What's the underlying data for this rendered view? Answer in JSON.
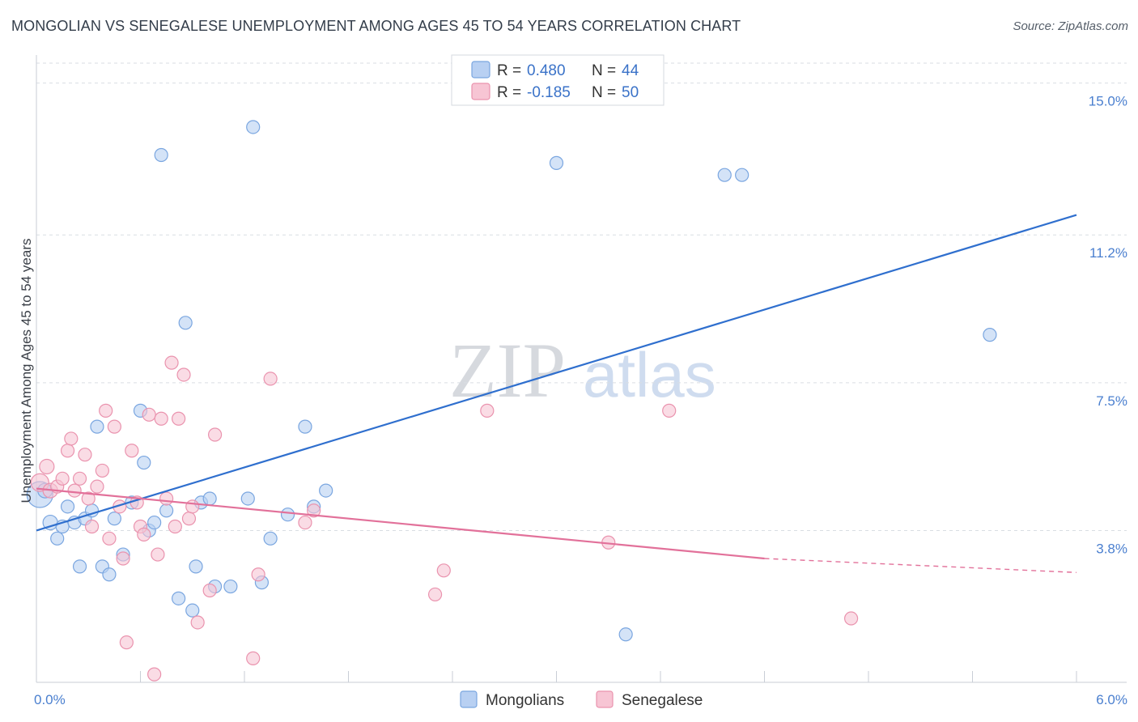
{
  "title": "MONGOLIAN VS SENEGALESE UNEMPLOYMENT AMONG AGES 45 TO 54 YEARS CORRELATION CHART",
  "source": "Source: ZipAtlas.com",
  "watermark": {
    "zip": "ZIP",
    "atlas": "atlas"
  },
  "colors": {
    "mongolians_fill": "#b8d0f2",
    "mongolians_stroke": "#7aa6e0",
    "mongolians_line": "#2f6fce",
    "senegalese_fill": "#f7c5d4",
    "senegalese_stroke": "#ea93ae",
    "senegalese_line": "#e2719a",
    "grid": "#d9dde3",
    "axis_text": "#4a7fcf"
  },
  "legend": {
    "rows": [
      {
        "r_label": "R =",
        "r_value": "0.480",
        "n_label": "N =",
        "n_value": "44"
      },
      {
        "r_label": "R =",
        "r_value": "-0.185",
        "n_label": "N =",
        "n_value": "50"
      }
    ]
  },
  "chart_data": {
    "type": "scatter",
    "title": "MONGOLIAN VS SENEGALESE UNEMPLOYMENT AMONG AGES 45 TO 54 YEARS CORRELATION CHART",
    "xlabel": "",
    "ylabel": "Unemployment Among Ages 45 to 54 years",
    "xlim": [
      0.0,
      6.0
    ],
    "ylim": [
      0.0,
      15.5
    ],
    "x_tick_labels": [
      "0.0%",
      "6.0%"
    ],
    "y_ticks": [
      3.8,
      7.5,
      11.2,
      15.0
    ],
    "y_tick_labels": [
      "3.8%",
      "7.5%",
      "11.2%",
      "15.0%"
    ],
    "series": [
      {
        "name": "Mongolians",
        "trend": {
          "x0": 0.0,
          "y0": 3.8,
          "x1": 6.0,
          "y1": 11.7
        },
        "points": [
          [
            0.02,
            4.7,
            16
          ],
          [
            0.05,
            4.8,
            9
          ],
          [
            0.08,
            4.0,
            9
          ],
          [
            0.12,
            3.6,
            8
          ],
          [
            0.15,
            3.9,
            8
          ],
          [
            0.18,
            4.4,
            8
          ],
          [
            0.22,
            4.0,
            8
          ],
          [
            0.25,
            2.9,
            8
          ],
          [
            0.28,
            4.1,
            8
          ],
          [
            0.32,
            4.3,
            8
          ],
          [
            0.35,
            6.4,
            8
          ],
          [
            0.38,
            2.9,
            8
          ],
          [
            0.42,
            2.7,
            8
          ],
          [
            0.45,
            4.1,
            8
          ],
          [
            0.5,
            3.2,
            8
          ],
          [
            0.55,
            4.5,
            8
          ],
          [
            0.6,
            6.8,
            8
          ],
          [
            0.62,
            5.5,
            8
          ],
          [
            0.65,
            3.8,
            8
          ],
          [
            0.68,
            4.0,
            8
          ],
          [
            0.72,
            13.2,
            8
          ],
          [
            0.75,
            4.3,
            8
          ],
          [
            0.82,
            2.1,
            8
          ],
          [
            0.86,
            9.0,
            8
          ],
          [
            0.9,
            1.8,
            8
          ],
          [
            0.92,
            2.9,
            8
          ],
          [
            0.95,
            4.5,
            8
          ],
          [
            1.0,
            4.6,
            8
          ],
          [
            1.03,
            2.4,
            8
          ],
          [
            1.12,
            2.4,
            8
          ],
          [
            1.22,
            4.6,
            8
          ],
          [
            1.25,
            13.9,
            8
          ],
          [
            1.3,
            2.5,
            8
          ],
          [
            1.35,
            3.6,
            8
          ],
          [
            1.45,
            4.2,
            8
          ],
          [
            1.55,
            6.4,
            8
          ],
          [
            1.6,
            4.4,
            8
          ],
          [
            1.67,
            4.8,
            8
          ],
          [
            3.0,
            13.0,
            8
          ],
          [
            3.4,
            1.2,
            8
          ],
          [
            3.97,
            12.7,
            8
          ],
          [
            4.07,
            12.7,
            8
          ],
          [
            5.5,
            8.7,
            8
          ]
        ]
      },
      {
        "name": "Senegalese",
        "trend": {
          "x0": 0.0,
          "y0": 4.85,
          "x1": 4.2,
          "y1": 3.1
        },
        "trend_dashed": {
          "x0": 4.2,
          "y0": 3.1,
          "x1": 6.0,
          "y1": 2.75
        },
        "points": [
          [
            0.02,
            5.0,
            11
          ],
          [
            0.06,
            5.4,
            9
          ],
          [
            0.08,
            4.8,
            9
          ],
          [
            0.12,
            4.9,
            8
          ],
          [
            0.15,
            5.1,
            8
          ],
          [
            0.18,
            5.8,
            8
          ],
          [
            0.2,
            6.1,
            8
          ],
          [
            0.22,
            4.8,
            8
          ],
          [
            0.25,
            5.1,
            8
          ],
          [
            0.28,
            5.7,
            8
          ],
          [
            0.3,
            4.6,
            8
          ],
          [
            0.32,
            3.9,
            8
          ],
          [
            0.35,
            4.9,
            8
          ],
          [
            0.38,
            5.3,
            8
          ],
          [
            0.4,
            6.8,
            8
          ],
          [
            0.42,
            3.6,
            8
          ],
          [
            0.45,
            6.4,
            8
          ],
          [
            0.48,
            4.4,
            8
          ],
          [
            0.5,
            3.1,
            8
          ],
          [
            0.52,
            1.0,
            8
          ],
          [
            0.55,
            5.8,
            8
          ],
          [
            0.58,
            4.5,
            8
          ],
          [
            0.6,
            3.9,
            8
          ],
          [
            0.62,
            3.7,
            8
          ],
          [
            0.65,
            6.7,
            8
          ],
          [
            0.68,
            0.2,
            8
          ],
          [
            0.7,
            3.2,
            8
          ],
          [
            0.72,
            6.6,
            8
          ],
          [
            0.75,
            4.6,
            8
          ],
          [
            0.78,
            8.0,
            8
          ],
          [
            0.8,
            3.9,
            8
          ],
          [
            0.82,
            6.6,
            8
          ],
          [
            0.85,
            7.7,
            8
          ],
          [
            0.88,
            4.1,
            8
          ],
          [
            0.9,
            4.4,
            8
          ],
          [
            0.93,
            1.5,
            8
          ],
          [
            1.0,
            2.3,
            8
          ],
          [
            1.03,
            6.2,
            8
          ],
          [
            1.25,
            0.6,
            8
          ],
          [
            1.28,
            2.7,
            8
          ],
          [
            1.35,
            7.6,
            8
          ],
          [
            1.55,
            4.0,
            8
          ],
          [
            1.6,
            4.3,
            8
          ],
          [
            2.3,
            2.2,
            8
          ],
          [
            2.35,
            2.8,
            8
          ],
          [
            2.6,
            6.8,
            8
          ],
          [
            3.3,
            3.5,
            8
          ],
          [
            3.65,
            6.8,
            8
          ],
          [
            4.7,
            1.6,
            8
          ]
        ]
      }
    ],
    "legend_position": "top-center",
    "bottom_legend": [
      "Mongolians",
      "Senegalese"
    ]
  }
}
